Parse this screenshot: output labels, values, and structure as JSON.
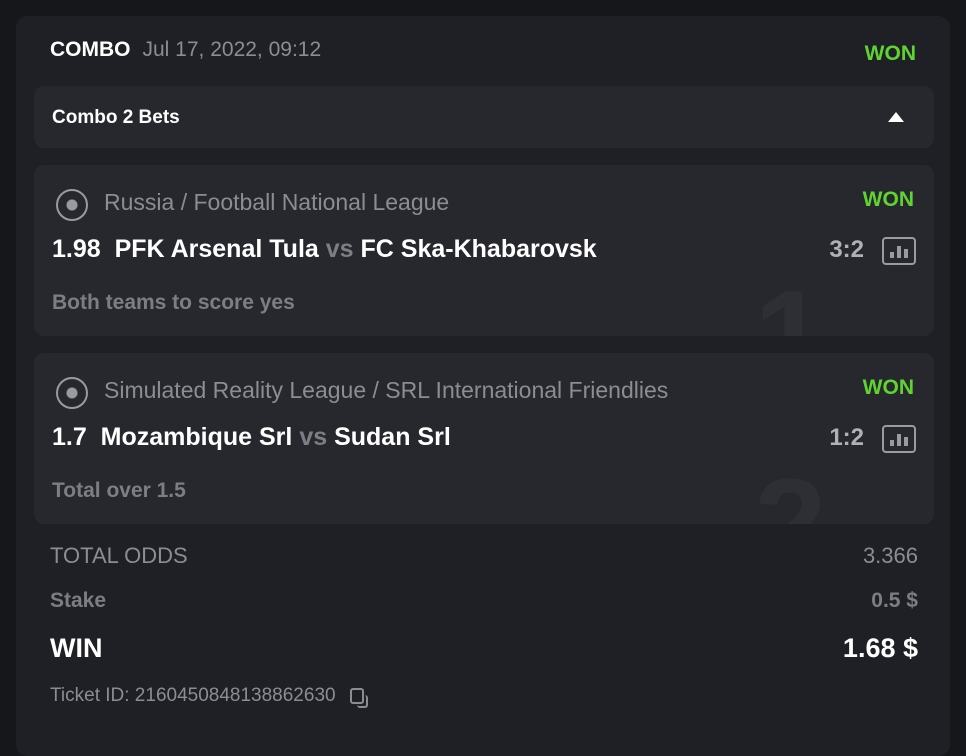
{
  "header": {
    "type": "COMBO",
    "date": "Jul 17, 2022, 09:12",
    "status": "WON"
  },
  "combo": {
    "label": "Combo 2 Bets"
  },
  "bets": [
    {
      "index": "1",
      "league": "Russia / Football National League",
      "status": "WON",
      "odds": "1.98",
      "home": "PFK Arsenal Tula",
      "vs": "vs",
      "away": "FC Ska-Khabarovsk",
      "score": "3:2",
      "market": "Both teams to score yes"
    },
    {
      "index": "2",
      "league": "Simulated Reality League / SRL International Friendlies",
      "status": "WON",
      "odds": "1.7",
      "home": "Mozambique Srl",
      "vs": "vs",
      "away": "Sudan Srl",
      "score": "1:2",
      "market": "Total over 1.5"
    }
  ],
  "summary": {
    "total_odds_label": "TOTAL ODDS",
    "total_odds": "3.366",
    "stake_label": "Stake",
    "stake": "0.5 $",
    "win_label": "WIN",
    "win": "1.68 $",
    "ticket_id": "Ticket ID: 2160450848138862630"
  },
  "colors": {
    "won": "#5fd431"
  }
}
